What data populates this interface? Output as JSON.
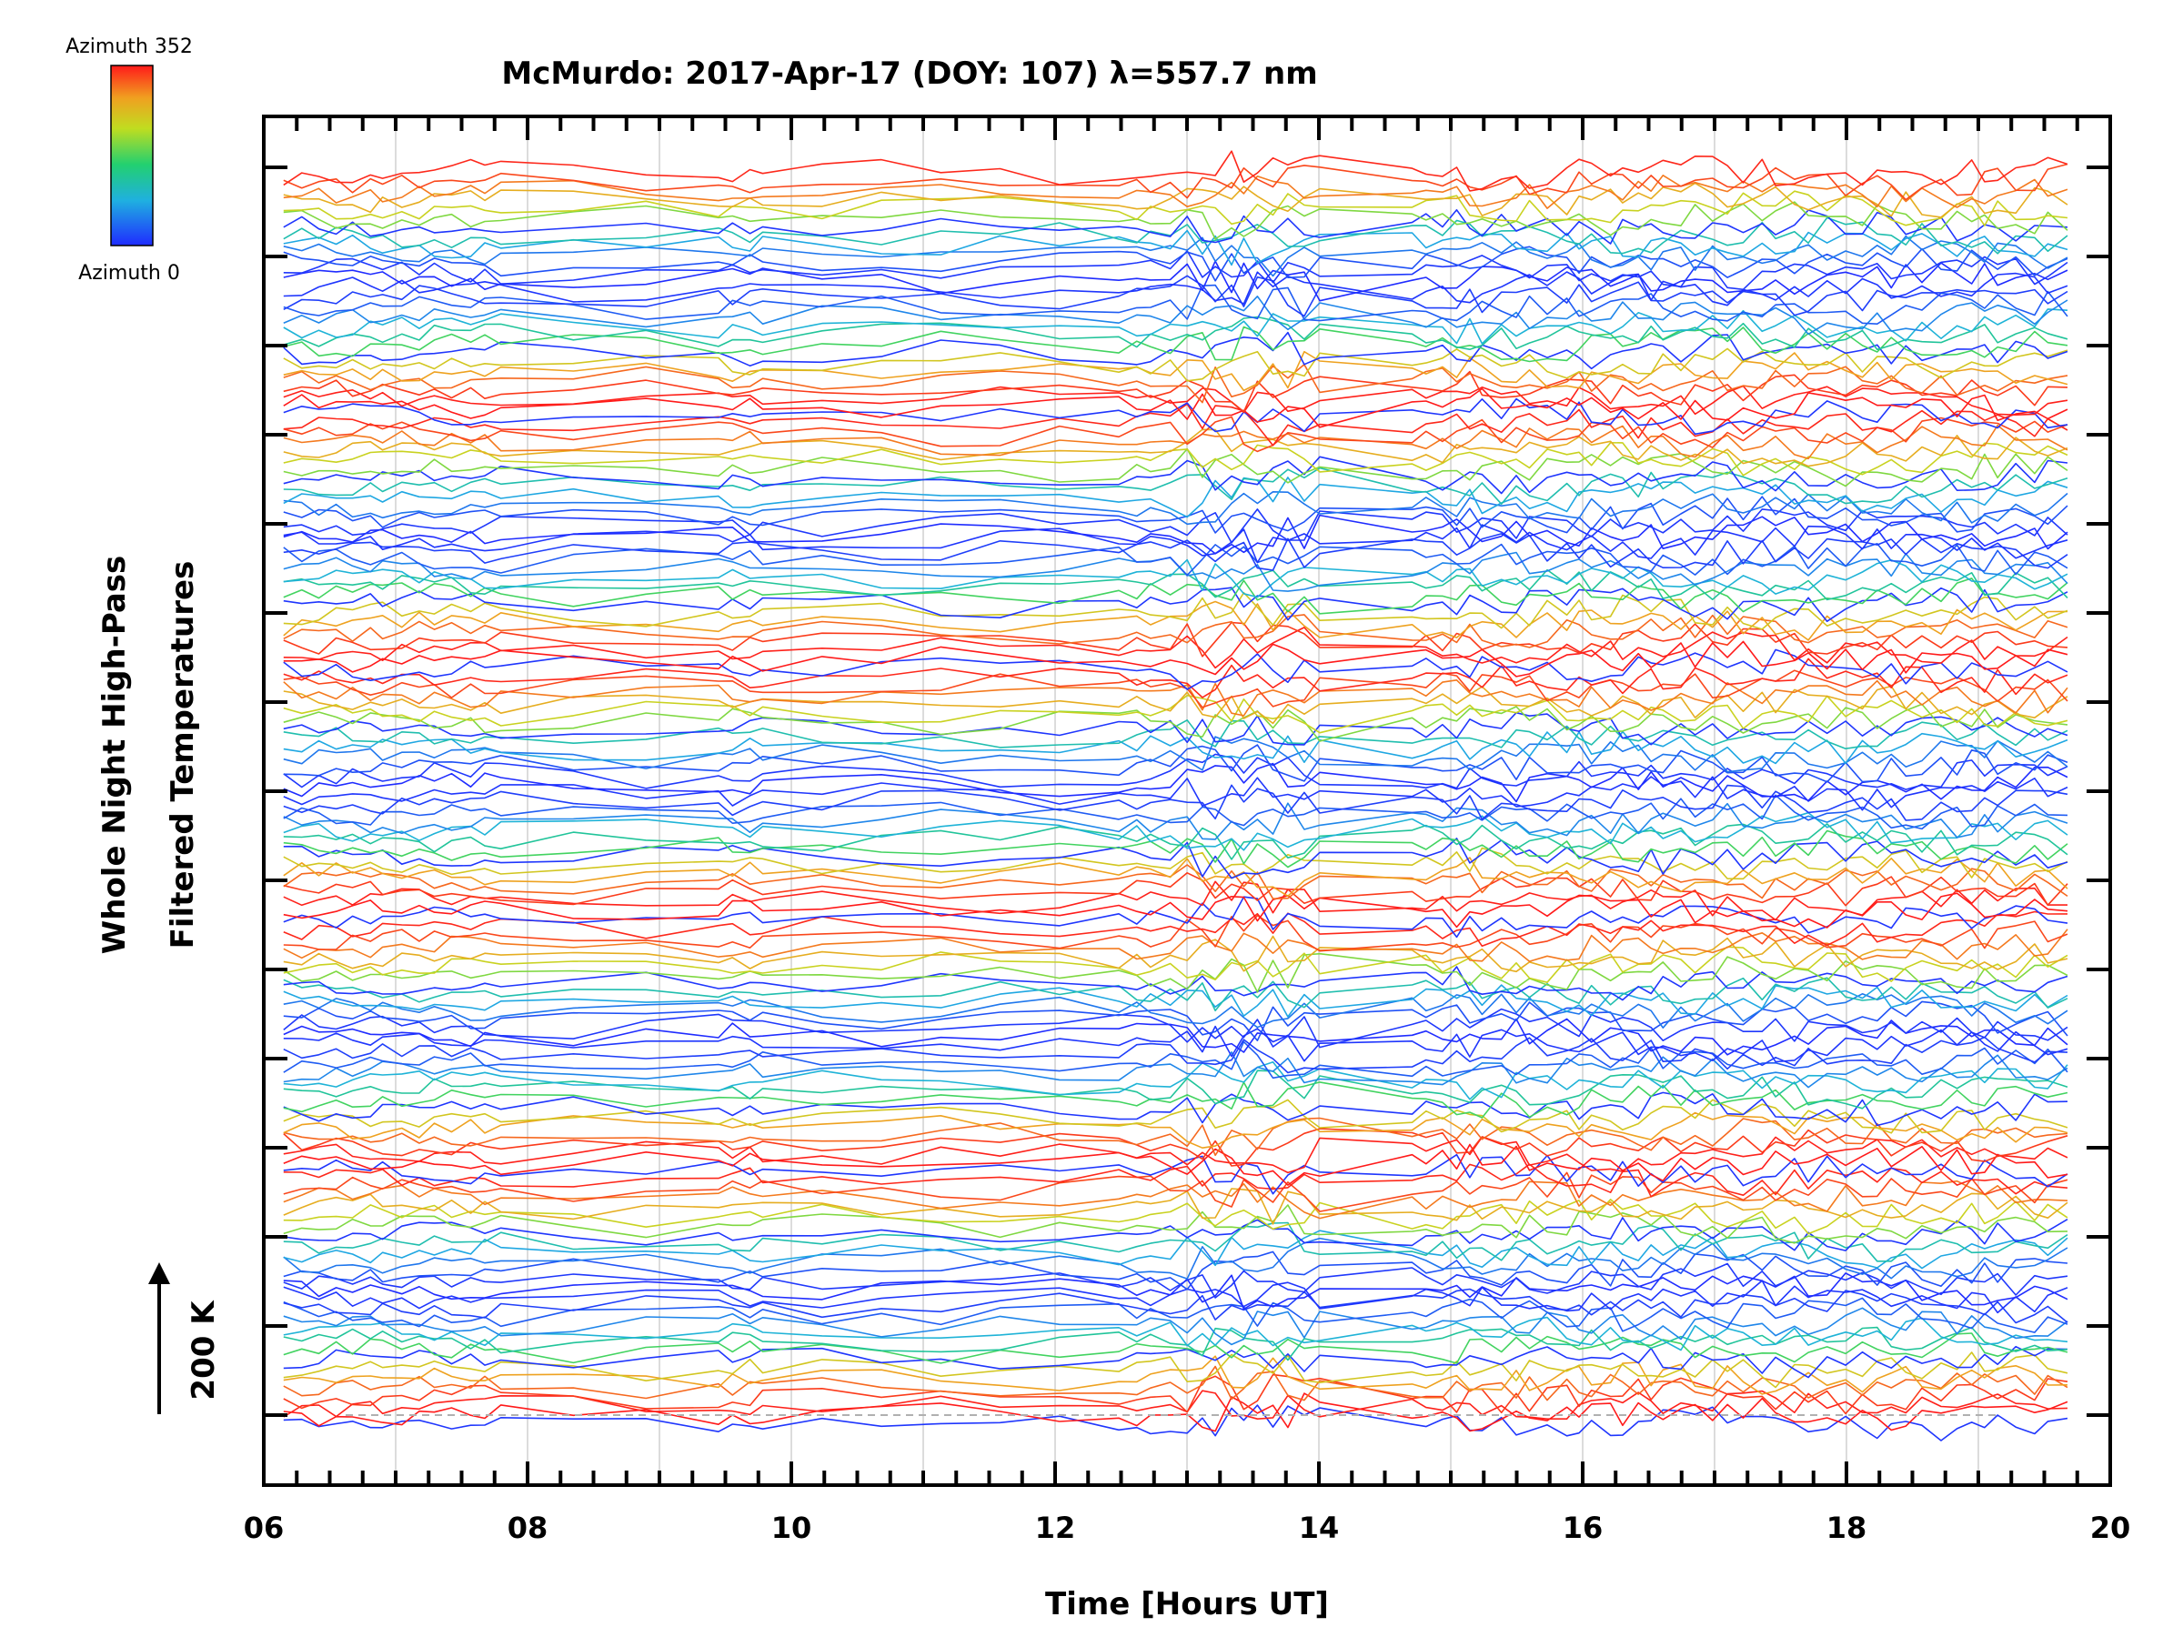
{
  "chart_data": {
    "type": "line",
    "title": "McMurdo: 2017-Apr-17 (DOY: 107) λ=557.7 nm",
    "xlabel": "Time [Hours UT]",
    "ylabel_lines": [
      "Whole Night High-Pass",
      "Filtered Temperatures"
    ],
    "xlim": [
      6,
      20
    ],
    "x_ticks": [
      "06",
      "08",
      "10",
      "12",
      "14",
      "16",
      "18",
      "20"
    ],
    "x_tick_values": [
      6,
      8,
      10,
      12,
      14,
      16,
      18,
      20
    ],
    "grid": "vertical dotted lines at each hour",
    "scale_indicator": "200 K",
    "colorbar": {
      "top_label": "Azimuth 352",
      "bottom_label": "Azimuth 0",
      "min": 0,
      "max": 352,
      "colormap": "rainbow (blue → cyan → green → yellow → red)",
      "placement": "top-left"
    },
    "series_count": 140,
    "series_note": "Stacked high-pass filtered temperature traces, one per azimuth/zenith sample, offset vertically; colour encodes azimuth from 0 (blue) to 352 (red).",
    "time_start": 6.15,
    "time_end": 19.75
  },
  "colors": {
    "axis": "#000000",
    "grid": "#c8c8c8",
    "azimuth_low": "#1a2cff",
    "azimuth_high": "#ff1a1a"
  }
}
